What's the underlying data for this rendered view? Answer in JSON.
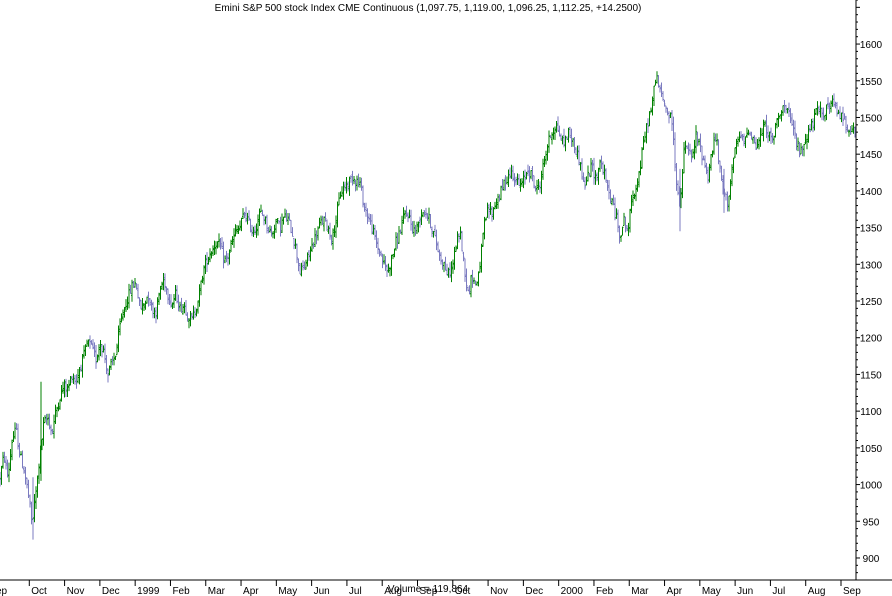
{
  "chart_data": {
    "type": "bar",
    "subtype": "ohlc",
    "title": "Emini S&P 500 stock Index CME Continuous (1,097.75, 1,119.00, 1,096.25, 1,112.25, +14.2500)",
    "volume_label": "Volume = 119,864",
    "ylim": [
      870,
      1660
    ],
    "y_ticks": [
      900,
      950,
      1000,
      1050,
      1100,
      1150,
      1200,
      1250,
      1300,
      1350,
      1400,
      1450,
      1500,
      1550,
      1600
    ],
    "x_labels": [
      "ep",
      "Oct",
      "Nov",
      "Dec",
      "1999",
      "Feb",
      "Mar",
      "Apr",
      "May",
      "Jun",
      "Jul",
      "Aug",
      "Sep",
      "Oct",
      "Nov",
      "Dec",
      "2000",
      "Feb",
      "Mar",
      "Apr",
      "May",
      "Jun",
      "Jul",
      "Aug",
      "Sep"
    ],
    "y_axis_side": "right",
    "up_color": "#008000",
    "down_color": "#7b7bc0",
    "price_path": [
      [
        0,
        1010
      ],
      [
        4,
        1040
      ],
      [
        8,
        1010
      ],
      [
        12,
        1060
      ],
      [
        16,
        1075
      ],
      [
        20,
        1040
      ],
      [
        24,
        1020
      ],
      [
        28,
        990
      ],
      [
        32,
        945
      ],
      [
        36,
        990
      ],
      [
        40,
        1040
      ],
      [
        44,
        1085
      ],
      [
        48,
        1090
      ],
      [
        52,
        1070
      ],
      [
        56,
        1100
      ],
      [
        60,
        1120
      ],
      [
        64,
        1135
      ],
      [
        68,
        1130
      ],
      [
        72,
        1150
      ],
      [
        76,
        1140
      ],
      [
        80,
        1160
      ],
      [
        84,
        1175
      ],
      [
        88,
        1195
      ],
      [
        92,
        1185
      ],
      [
        96,
        1170
      ],
      [
        100,
        1195
      ],
      [
        104,
        1180
      ],
      [
        108,
        1150
      ],
      [
        112,
        1165
      ],
      [
        116,
        1180
      ],
      [
        120,
        1215
      ],
      [
        124,
        1240
      ],
      [
        128,
        1255
      ],
      [
        132,
        1270
      ],
      [
        136,
        1275
      ],
      [
        140,
        1240
      ],
      [
        144,
        1245
      ],
      [
        148,
        1260
      ],
      [
        152,
        1240
      ],
      [
        156,
        1235
      ],
      [
        160,
        1265
      ],
      [
        164,
        1280
      ],
      [
        168,
        1260
      ],
      [
        172,
        1245
      ],
      [
        176,
        1260
      ],
      [
        180,
        1240
      ],
      [
        184,
        1245
      ],
      [
        188,
        1230
      ],
      [
        192,
        1225
      ],
      [
        196,
        1240
      ],
      [
        200,
        1265
      ],
      [
        204,
        1295
      ],
      [
        208,
        1310
      ],
      [
        212,
        1320
      ],
      [
        216,
        1330
      ],
      [
        220,
        1325
      ],
      [
        224,
        1305
      ],
      [
        228,
        1310
      ],
      [
        232,
        1330
      ],
      [
        236,
        1345
      ],
      [
        240,
        1350
      ],
      [
        244,
        1370
      ],
      [
        248,
        1360
      ],
      [
        252,
        1345
      ],
      [
        256,
        1350
      ],
      [
        260,
        1370
      ],
      [
        264,
        1365
      ],
      [
        268,
        1350
      ],
      [
        272,
        1340
      ],
      [
        276,
        1360
      ],
      [
        280,
        1350
      ],
      [
        284,
        1365
      ],
      [
        288,
        1360
      ],
      [
        292,
        1345
      ],
      [
        296,
        1320
      ],
      [
        300,
        1290
      ],
      [
        304,
        1295
      ],
      [
        308,
        1310
      ],
      [
        312,
        1325
      ],
      [
        316,
        1340
      ],
      [
        320,
        1355
      ],
      [
        324,
        1360
      ],
      [
        328,
        1350
      ],
      [
        332,
        1335
      ],
      [
        336,
        1360
      ],
      [
        340,
        1395
      ],
      [
        344,
        1405
      ],
      [
        348,
        1410
      ],
      [
        352,
        1420
      ],
      [
        356,
        1415
      ],
      [
        360,
        1410
      ],
      [
        364,
        1380
      ],
      [
        368,
        1365
      ],
      [
        372,
        1350
      ],
      [
        376,
        1330
      ],
      [
        380,
        1315
      ],
      [
        384,
        1300
      ],
      [
        388,
        1290
      ],
      [
        392,
        1310
      ],
      [
        396,
        1330
      ],
      [
        400,
        1345
      ],
      [
        404,
        1365
      ],
      [
        408,
        1370
      ],
      [
        412,
        1350
      ],
      [
        416,
        1345
      ],
      [
        420,
        1365
      ],
      [
        424,
        1375
      ],
      [
        428,
        1365
      ],
      [
        432,
        1350
      ],
      [
        436,
        1330
      ],
      [
        440,
        1310
      ],
      [
        444,
        1300
      ],
      [
        448,
        1285
      ],
      [
        452,
        1295
      ],
      [
        456,
        1325
      ],
      [
        460,
        1345
      ],
      [
        464,
        1300
      ],
      [
        468,
        1260
      ],
      [
        472,
        1285
      ],
      [
        476,
        1270
      ],
      [
        480,
        1300
      ],
      [
        484,
        1350
      ],
      [
        488,
        1375
      ],
      [
        492,
        1370
      ],
      [
        496,
        1385
      ],
      [
        500,
        1395
      ],
      [
        504,
        1410
      ],
      [
        508,
        1420
      ],
      [
        512,
        1425
      ],
      [
        516,
        1415
      ],
      [
        520,
        1405
      ],
      [
        524,
        1415
      ],
      [
        528,
        1430
      ],
      [
        532,
        1420
      ],
      [
        536,
        1400
      ],
      [
        540,
        1410
      ],
      [
        544,
        1440
      ],
      [
        548,
        1465
      ],
      [
        552,
        1480
      ],
      [
        556,
        1490
      ],
      [
        560,
        1475
      ],
      [
        564,
        1465
      ],
      [
        568,
        1480
      ],
      [
        572,
        1470
      ],
      [
        576,
        1455
      ],
      [
        580,
        1440
      ],
      [
        584,
        1405
      ],
      [
        588,
        1420
      ],
      [
        592,
        1435
      ],
      [
        596,
        1415
      ],
      [
        600,
        1440
      ],
      [
        604,
        1425
      ],
      [
        608,
        1400
      ],
      [
        612,
        1385
      ],
      [
        616,
        1365
      ],
      [
        620,
        1340
      ],
      [
        624,
        1360
      ],
      [
        628,
        1345
      ],
      [
        632,
        1390
      ],
      [
        636,
        1405
      ],
      [
        640,
        1430
      ],
      [
        644,
        1470
      ],
      [
        648,
        1495
      ],
      [
        652,
        1515
      ],
      [
        656,
        1560
      ],
      [
        660,
        1535
      ],
      [
        664,
        1520
      ],
      [
        668,
        1505
      ],
      [
        672,
        1495
      ],
      [
        676,
        1420
      ],
      [
        680,
        1375
      ],
      [
        684,
        1455
      ],
      [
        688,
        1460
      ],
      [
        692,
        1440
      ],
      [
        696,
        1475
      ],
      [
        700,
        1460
      ],
      [
        704,
        1440
      ],
      [
        708,
        1420
      ],
      [
        712,
        1455
      ],
      [
        716,
        1475
      ],
      [
        720,
        1425
      ],
      [
        724,
        1395
      ],
      [
        728,
        1385
      ],
      [
        732,
        1430
      ],
      [
        736,
        1460
      ],
      [
        740,
        1475
      ],
      [
        744,
        1465
      ],
      [
        748,
        1485
      ],
      [
        752,
        1475
      ],
      [
        756,
        1460
      ],
      [
        760,
        1470
      ],
      [
        764,
        1490
      ],
      [
        768,
        1480
      ],
      [
        772,
        1465
      ],
      [
        776,
        1490
      ],
      [
        780,
        1510
      ],
      [
        784,
        1515
      ],
      [
        788,
        1505
      ],
      [
        792,
        1490
      ],
      [
        796,
        1470
      ],
      [
        800,
        1450
      ],
      [
        804,
        1465
      ],
      [
        808,
        1480
      ],
      [
        812,
        1490
      ],
      [
        816,
        1505
      ],
      [
        820,
        1510
      ],
      [
        824,
        1505
      ],
      [
        828,
        1515
      ],
      [
        832,
        1520
      ],
      [
        836,
        1510
      ],
      [
        840,
        1505
      ],
      [
        844,
        1495
      ],
      [
        848,
        1488
      ],
      [
        852,
        1482
      ],
      [
        855,
        1478
      ]
    ]
  }
}
